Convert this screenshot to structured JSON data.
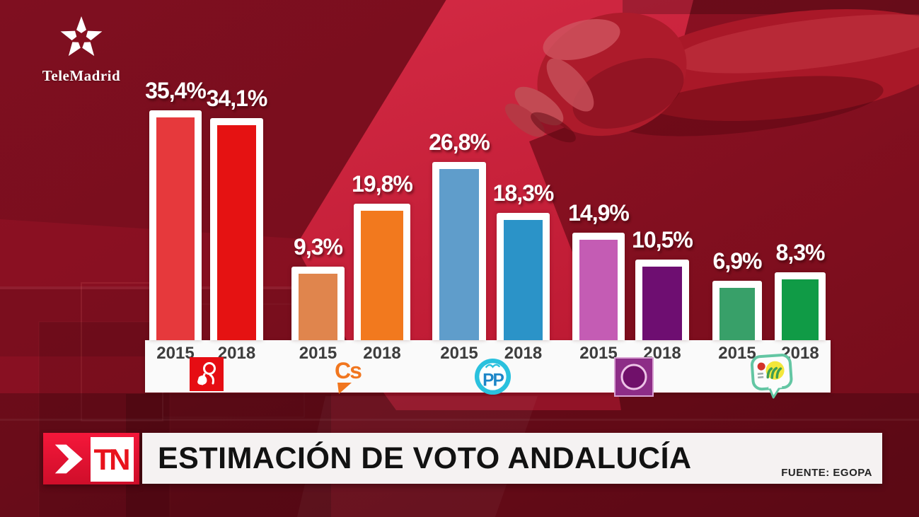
{
  "branding": {
    "channel_name": "TeleMadrid"
  },
  "banner": {
    "program_logo": "TN",
    "title": "ESTIMACIÓN DE VOTO ANDALUCÍA",
    "source": "FUENTE: EGOPA"
  },
  "chart_data": {
    "type": "bar",
    "title": "Estimación de voto Andalucía",
    "source": "EGOPA",
    "unit": "%",
    "value_decimal_style": "comma",
    "categories": [
      "2015",
      "2018"
    ],
    "series": [
      {
        "name": "PSOE",
        "values": [
          35.4,
          34.1
        ],
        "display_labels": [
          "35,4%",
          "34,1%"
        ],
        "colors": [
          "#e6393c",
          "#e51212"
        ],
        "logo_text": ""
      },
      {
        "name": "Ciudadanos",
        "values": [
          9.3,
          19.8
        ],
        "display_labels": [
          "9,3%",
          "19,8%"
        ],
        "colors": [
          "#e0854d",
          "#f2791e"
        ],
        "logo_text": "Cs"
      },
      {
        "name": "PP",
        "values": [
          26.8,
          18.3
        ],
        "display_labels": [
          "26,8%",
          "18,3%"
        ],
        "colors": [
          "#5f9dcb",
          "#2b93c8"
        ],
        "logo_text": "PP"
      },
      {
        "name": "Podemos",
        "values": [
          14.9,
          10.5
        ],
        "display_labels": [
          "14,9%",
          "10,5%"
        ],
        "colors": [
          "#c45cb4",
          "#6e0e71"
        ],
        "logo_text": ""
      },
      {
        "name": "IU",
        "values": [
          6.9,
          8.3
        ],
        "display_labels": [
          "6,9%",
          "8,3%"
        ],
        "colors": [
          "#38a069",
          "#109b46"
        ],
        "logo_text": ""
      }
    ],
    "ylim": [
      0,
      40
    ],
    "grid": false,
    "legend_position": "bottom-logos"
  },
  "colors": {
    "background": "#851021",
    "ballot_paper": "#c91d38",
    "accent_red": "#e8112d",
    "axis_strip": "#fafafa"
  }
}
